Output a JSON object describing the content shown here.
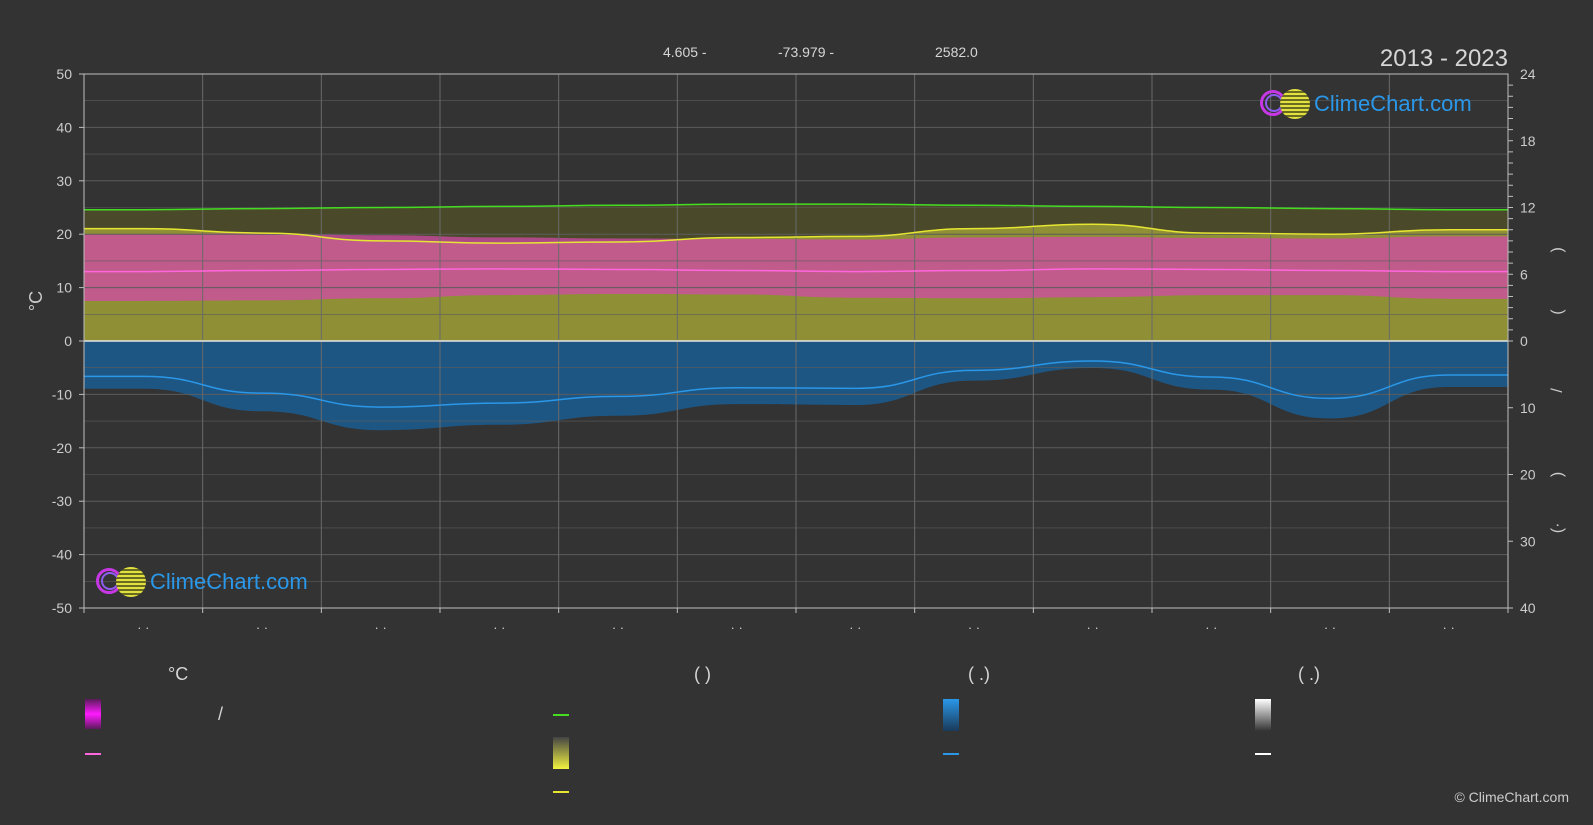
{
  "header": {
    "lat": "4.605 -",
    "lon": "-73.979 -",
    "elevation": "2582.0",
    "years": "2013 - 2023"
  },
  "logo_text": "ClimeChart.com",
  "copyright": "© ClimeChart.com",
  "legend": {
    "col1_head": "°C",
    "col2_head": "(           )",
    "col3_head": "(    .)",
    "col4_head": "(    .)",
    "slash": "/"
  },
  "colors": {
    "background": "#333333",
    "sunshine_band": "#8f8f35",
    "temp_band": "#d04aa8",
    "daylight_line": "#44dd22",
    "sunshine_line": "#e6e632",
    "temp_mean_line": "#ff66dd",
    "precip_band": "#1c5a8c",
    "precip_line": "#2a97e8",
    "zero_line": "#e6e6e6"
  },
  "chart_data": {
    "type": "area",
    "title": "",
    "left_axis": {
      "label": "°C",
      "min": -50,
      "max": 50,
      "ticks": [
        50,
        40,
        30,
        20,
        10,
        0,
        -10,
        -20,
        -30,
        -40,
        -50
      ]
    },
    "right_axis_top": {
      "min": 0,
      "max": 24,
      "ticks": [
        24,
        18,
        12,
        6,
        0
      ]
    },
    "right_axis_bottom": {
      "min": 0,
      "max": 40,
      "ticks": [
        0,
        10,
        20,
        30,
        40
      ]
    },
    "right_axis_labels": [
      ")",
      "(",
      "/",
      ")",
      "(·"
    ],
    "month_labels": [
      "· ·",
      "· ·",
      "· ·",
      "· ·",
      "· ·",
      "· ·",
      "· ·",
      "· ·",
      "· ·",
      "· ·",
      "· ·",
      "· ·"
    ],
    "grid": true,
    "series": [
      {
        "key": "daylight",
        "axis": "right_top",
        "values": [
          11.8,
          11.9,
          12.0,
          12.1,
          12.2,
          12.3,
          12.3,
          12.2,
          12.1,
          12.0,
          11.9,
          11.8
        ]
      },
      {
        "key": "sunshine",
        "axis": "right_top",
        "values": [
          10.1,
          9.7,
          9.0,
          8.8,
          8.9,
          9.3,
          9.4,
          10.1,
          10.5,
          9.7,
          9.6,
          10.0
        ]
      },
      {
        "key": "temp_mean",
        "axis": "left",
        "values": [
          13.0,
          13.2,
          13.4,
          13.5,
          13.4,
          13.2,
          13.0,
          13.2,
          13.5,
          13.4,
          13.2,
          13.0
        ]
      },
      {
        "key": "precip",
        "axis": "right_bottom",
        "values": [
          5.3,
          7.8,
          9.9,
          9.3,
          8.3,
          7.0,
          7.1,
          4.4,
          3.0,
          5.4,
          8.6,
          5.1
        ]
      }
    ],
    "temp_band": {
      "min": [
        7.5,
        7.6,
        8.0,
        8.6,
        8.8,
        8.7,
        8.1,
        8.0,
        8.2,
        8.6,
        8.6,
        7.9
      ],
      "max": [
        20.0,
        20.2,
        19.8,
        19.4,
        19.2,
        19.1,
        19.0,
        19.4,
        19.5,
        19.3,
        19.2,
        19.6
      ]
    }
  }
}
